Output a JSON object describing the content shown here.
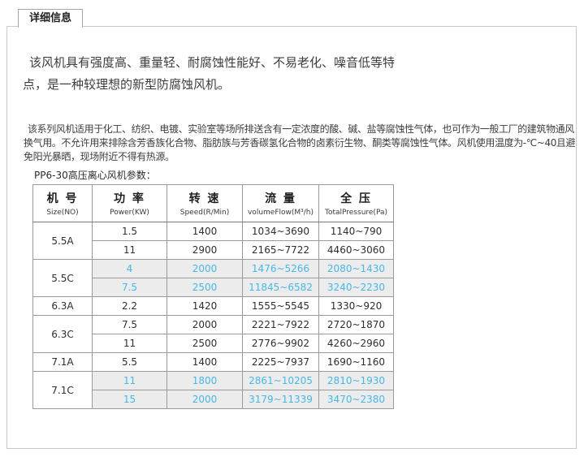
{
  "tab": {
    "label": "详细信息"
  },
  "paragraphs": {
    "intro": "该风机具有强度高、重量轻、耐腐蚀性能好、不易老化、噪音低等特点，是一种较理想的新型防腐蚀风机。",
    "detail": "该系列风机适用于化工、纺织、电镀、实验室等场所排送含有一定浓度的酸、碱、盐等腐蚀性气体，也可作为一般工厂的建筑物通风换气用。不允许用来排除含芳香族化合物、脂肪族与芳香碳氢化合物的卤素衍生物、酮类等腐蚀性气体。风机使用温度为-℃~40且避免阳光暴晒，现场附近不得有热源。"
  },
  "table": {
    "title": "PP6-30高压离心风机参数：",
    "headers": [
      {
        "cn": "机 号",
        "en": "Size(NO)"
      },
      {
        "cn": "功 率",
        "en": "Power(KW)"
      },
      {
        "cn": "转 速",
        "en": "Speed(R/Min)"
      },
      {
        "cn": "流 量",
        "en": "volumeFlow(M³/h)"
      },
      {
        "cn": "全 压",
        "en": "TotalPressure(Pa)"
      }
    ],
    "groups": [
      {
        "model": "5.5A",
        "highlight": false,
        "rows": [
          [
            "1.5",
            "1400",
            "1034~3690",
            "1140~790"
          ],
          [
            "11",
            "2900",
            "2165~7722",
            "4460~3060"
          ]
        ]
      },
      {
        "model": "5.5C",
        "highlight": true,
        "rows": [
          [
            "4",
            "2000",
            "1476~5266",
            "2080~1430"
          ],
          [
            "7.5",
            "2500",
            "11845~6582",
            "3240~2230"
          ]
        ]
      },
      {
        "model": "6.3A",
        "highlight": false,
        "rows": [
          [
            "2.2",
            "1420",
            "1555~5545",
            "1330~920"
          ]
        ]
      },
      {
        "model": "6.3C",
        "highlight": false,
        "rows": [
          [
            "7.5",
            "2000",
            "2221~7922",
            "2720~1870"
          ],
          [
            "11",
            "2500",
            "2776~9902",
            "4260~2960"
          ]
        ]
      },
      {
        "model": "7.1A",
        "highlight": false,
        "rows": [
          [
            "5.5",
            "1400",
            "2225~7937",
            "1690~1160"
          ]
        ]
      },
      {
        "model": "7.1C",
        "highlight": true,
        "rows": [
          [
            "11",
            "1800",
            "2861~10205",
            "2810~1930"
          ],
          [
            "15",
            "2000",
            "3179~11339",
            "3470~2380"
          ]
        ]
      }
    ]
  },
  "colors": {
    "highlight_text": "#47b7e5",
    "highlight_bg": "#ececec",
    "table_border": "#9a9a9a",
    "box_border": "#c9c9c9",
    "body_text": "#3d3d3d"
  }
}
